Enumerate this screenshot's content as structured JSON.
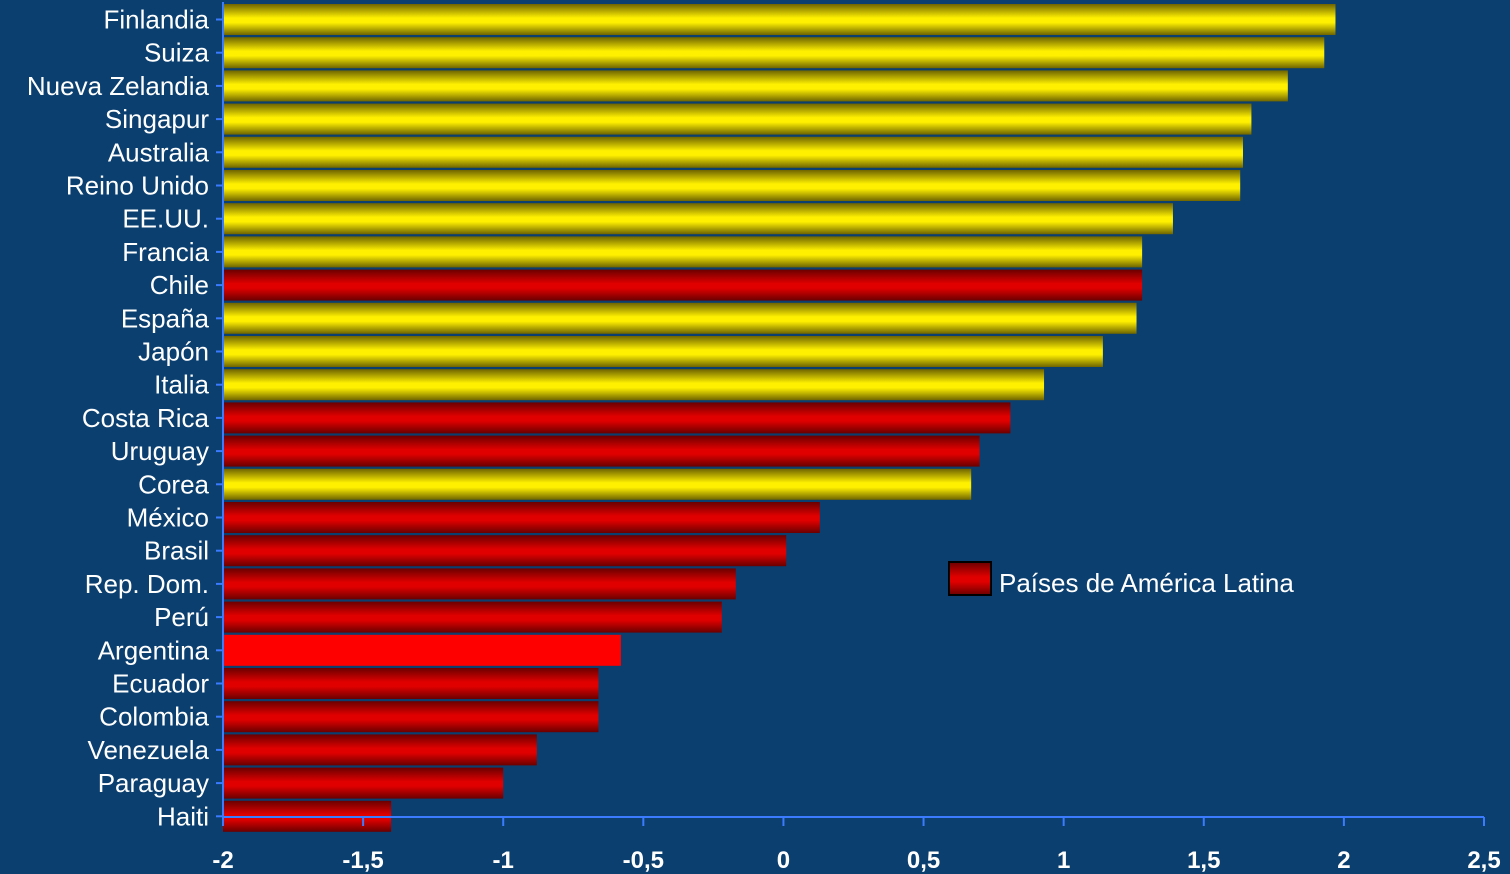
{
  "chart_data": {
    "type": "bar",
    "orientation": "horizontal",
    "categories": [
      "Finlandia",
      "Suiza",
      "Nueva Zelandia",
      "Singapur",
      "Australia",
      "Reino Unido",
      "EE.UU.",
      "Francia",
      "Chile",
      "España",
      "Japón",
      "Italia",
      "Costa Rica",
      "Uruguay",
      "Corea",
      "México",
      "Brasil",
      "Rep. Dom.",
      "Perú",
      "Argentina",
      "Ecuador",
      "Colombia",
      "Venezuela",
      "Paraguay",
      "Haiti"
    ],
    "values": [
      1.97,
      1.93,
      1.8,
      1.67,
      1.64,
      1.63,
      1.39,
      1.28,
      1.28,
      1.26,
      1.14,
      0.93,
      0.81,
      0.7,
      0.67,
      0.13,
      0.01,
      -0.17,
      -0.22,
      -0.58,
      -0.66,
      -0.66,
      -0.88,
      -1.0,
      -1.4
    ],
    "latin_america": [
      false,
      false,
      false,
      false,
      false,
      false,
      false,
      false,
      true,
      false,
      false,
      false,
      true,
      true,
      false,
      true,
      true,
      true,
      true,
      true,
      true,
      true,
      true,
      true,
      true
    ],
    "xlim": [
      -2,
      2.5
    ],
    "xticks": [
      "-2",
      "-1,5",
      "-1",
      "-0,5",
      "0",
      "0,5",
      "1",
      "1,5",
      "2",
      "2,5"
    ],
    "xtick_values": [
      -2,
      -1.5,
      -1,
      -0.5,
      0,
      0.5,
      1,
      1.5,
      2,
      2.5
    ],
    "title": "",
    "xlabel": "",
    "ylabel": "",
    "grid": false,
    "legend": {
      "placement": "center-right",
      "entries": [
        {
          "label": "Países de América Latina",
          "color": "#cc0000"
        }
      ]
    },
    "colors": {
      "background": "#0b3f6f",
      "other": "#f0e400",
      "latin_america": "#cc0000",
      "highlight": "#ff0000",
      "axis": "#3a7bff"
    }
  }
}
